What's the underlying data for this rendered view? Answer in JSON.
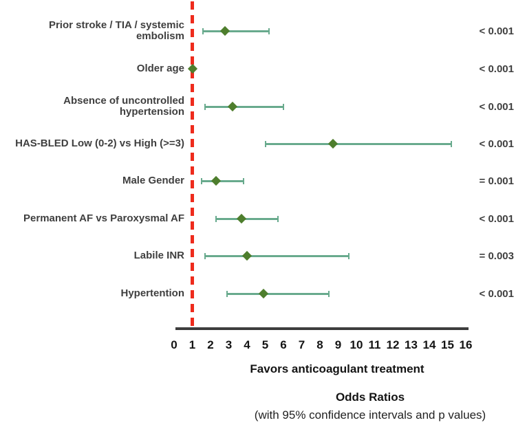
{
  "chart_data": {
    "type": "forest",
    "title": "Odds Ratios",
    "subtitle": "(with 95% confidence intervals and p values)",
    "xlabel": "Favors anticoagulant treatment",
    "xlim": [
      0,
      16
    ],
    "x_ticks": [
      0,
      1,
      2,
      3,
      4,
      5,
      6,
      7,
      8,
      9,
      10,
      11,
      12,
      13,
      14,
      15,
      16
    ],
    "reference_line_x": 1,
    "grid": false,
    "legend": "none",
    "rows": [
      {
        "label": "Prior stroke / TIA / systemic embolism",
        "or": 2.8,
        "ci_low": 1.6,
        "ci_high": 5.2,
        "p": "< 0.001"
      },
      {
        "label": "Older age",
        "or": 1.0,
        "ci_low": 1.0,
        "ci_high": 1.0,
        "p": "< 0.001"
      },
      {
        "label": "Absence of uncontrolled hypertension",
        "or": 3.2,
        "ci_low": 1.7,
        "ci_high": 6.0,
        "p": "< 0.001"
      },
      {
        "label": "HAS-BLED Low (0-2) vs High (>=3)",
        "or": 8.7,
        "ci_low": 5.0,
        "ci_high": 15.2,
        "p": "< 0.001"
      },
      {
        "label": "Male Gender",
        "or": 2.3,
        "ci_low": 1.5,
        "ci_high": 3.8,
        "p": "= 0.001"
      },
      {
        "label": "Permanent AF vs Paroxysmal AF",
        "or": 3.7,
        "ci_low": 2.3,
        "ci_high": 5.7,
        "p": "< 0.001"
      },
      {
        "label": "Labile INR",
        "or": 4.0,
        "ci_low": 1.7,
        "ci_high": 9.6,
        "p": "= 0.003"
      },
      {
        "label": "Hypertention",
        "or": 4.9,
        "ci_low": 2.9,
        "ci_high": 8.5,
        "p": "< 0.001"
      }
    ],
    "colors": {
      "marker": "#4e7e2d",
      "ci_line": "#68aa8d",
      "reference_line": "#ee2b1c",
      "axis": "#3d3d3d",
      "label_text": "#3f3f3f",
      "tick_text": "#141414"
    }
  }
}
